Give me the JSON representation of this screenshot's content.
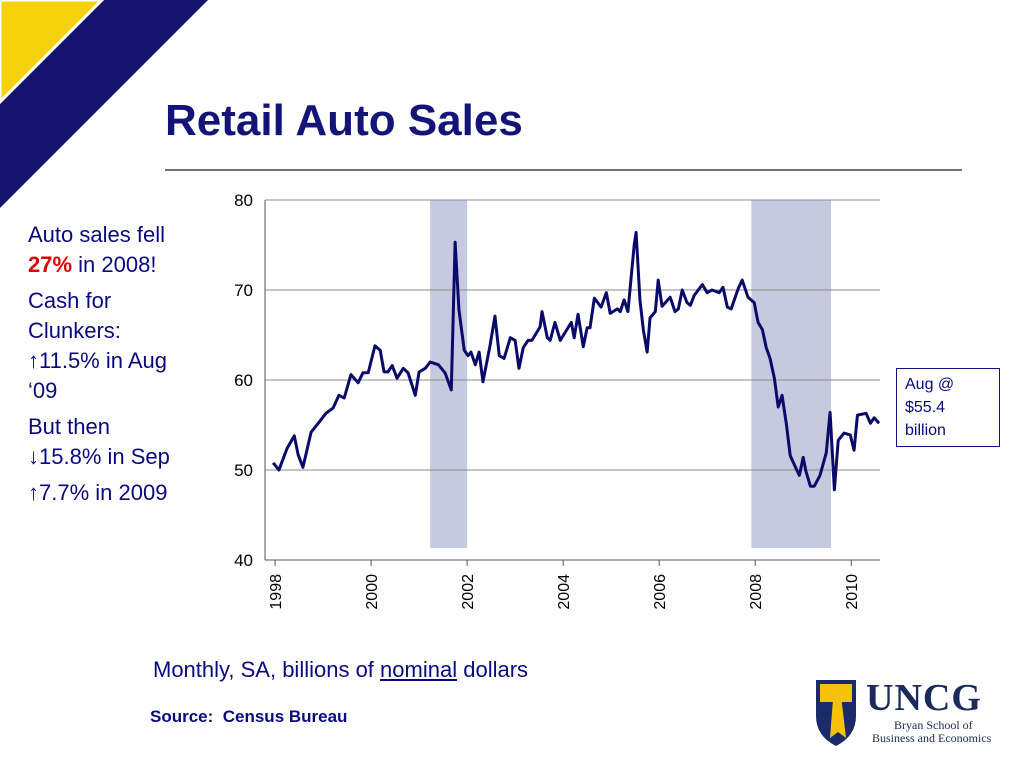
{
  "title": "Retail Auto Sales",
  "sidebar": {
    "line1_before": "Auto sales fell",
    "line1_emph": "27%",
    "line1_after": "in 2008!",
    "line2": "Cash for Clunkers: ↑11.5% in Aug ‘09",
    "line3": "But then ↓15.8% in Sep",
    "line4": "↑7.7% in 2009"
  },
  "caption": {
    "before": "Monthly, SA, billions of",
    "underlined": "nominal",
    "after": "dollars"
  },
  "source": "Source:  Census Bureau",
  "logo": {
    "name": "UNCG",
    "line1": "Bryan School of",
    "line2": "Business and Economics"
  },
  "chart_data": {
    "type": "line",
    "color": "#0a0a6a",
    "band_color": "#c7c9e0",
    "grid": true,
    "annotation": [
      "Aug @",
      "$55.4",
      "billion"
    ],
    "xlim": [
      1997.79,
      2010.6
    ],
    "xticks": [
      1998,
      2000,
      2002,
      2004,
      2006,
      2008,
      2010
    ],
    "ylim": [
      40,
      80
    ],
    "yticks": [
      40,
      50,
      60,
      70,
      80
    ],
    "recessions": [
      [
        2001.23,
        2002.0
      ],
      [
        2007.92,
        2009.58
      ]
    ],
    "x": [
      1997.96,
      1998.08,
      1998.25,
      1998.4,
      1998.48,
      1998.58,
      1998.75,
      1998.9,
      1999.06,
      1999.21,
      1999.33,
      1999.44,
      1999.58,
      1999.73,
      1999.83,
      1999.94,
      2000.08,
      2000.19,
      2000.27,
      2000.35,
      2000.44,
      2000.54,
      2000.67,
      2000.77,
      2000.92,
      2001.0,
      2001.13,
      2001.23,
      2001.4,
      2001.54,
      2001.67,
      2001.75,
      2001.83,
      2001.94,
      2002.02,
      2002.08,
      2002.17,
      2002.25,
      2002.33,
      2002.48,
      2002.58,
      2002.67,
      2002.77,
      2002.9,
      2003.0,
      2003.08,
      2003.17,
      2003.27,
      2003.35,
      2003.52,
      2003.56,
      2003.67,
      2003.73,
      2003.83,
      2003.94,
      2004.17,
      2004.23,
      2004.31,
      2004.42,
      2004.5,
      2004.56,
      2004.65,
      2004.79,
      2004.9,
      2004.98,
      2005.13,
      2005.19,
      2005.27,
      2005.35,
      2005.48,
      2005.52,
      2005.6,
      2005.67,
      2005.75,
      2005.81,
      2005.92,
      2005.98,
      2006.06,
      2006.23,
      2006.33,
      2006.4,
      2006.48,
      2006.58,
      2006.65,
      2006.73,
      2006.9,
      2007.0,
      2007.1,
      2007.25,
      2007.33,
      2007.42,
      2007.5,
      2007.65,
      2007.73,
      2007.85,
      2007.98,
      2008.06,
      2008.15,
      2008.23,
      2008.31,
      2008.4,
      2008.48,
      2008.56,
      2008.65,
      2008.73,
      2008.85,
      2008.92,
      2009.0,
      2009.06,
      2009.15,
      2009.23,
      2009.35,
      2009.48,
      2009.56,
      2009.65,
      2009.73,
      2009.85,
      2009.98,
      2010.06,
      2010.13,
      2010.31,
      2010.4,
      2010.48,
      2010.58
    ],
    "values": [
      50.8,
      50.0,
      52.4,
      53.8,
      51.7,
      50.3,
      54.2,
      55.2,
      56.3,
      56.9,
      58.3,
      58.0,
      60.6,
      59.7,
      60.8,
      60.8,
      63.8,
      63.3,
      60.9,
      60.9,
      61.6,
      60.2,
      61.3,
      60.8,
      58.3,
      60.9,
      61.3,
      62.0,
      61.7,
      60.8,
      58.9,
      75.3,
      67.8,
      63.3,
      62.7,
      63.1,
      61.7,
      63.1,
      59.8,
      63.9,
      67.1,
      62.7,
      62.4,
      64.7,
      64.4,
      61.3,
      63.6,
      64.4,
      64.4,
      65.9,
      67.6,
      64.7,
      64.4,
      66.4,
      64.4,
      66.4,
      64.7,
      67.3,
      63.7,
      65.8,
      65.8,
      69.1,
      68.1,
      69.7,
      67.4,
      67.9,
      67.6,
      68.9,
      67.6,
      75.0,
      76.4,
      68.9,
      65.6,
      63.1,
      66.9,
      67.6,
      71.1,
      68.2,
      69.2,
      67.6,
      67.9,
      70.0,
      68.6,
      68.3,
      69.4,
      70.6,
      69.7,
      70.0,
      69.7,
      70.3,
      68.1,
      67.9,
      70.2,
      71.1,
      69.2,
      68.6,
      66.4,
      65.6,
      63.6,
      62.4,
      60.2,
      57.0,
      58.3,
      55.1,
      51.6,
      50.2,
      49.4,
      51.4,
      49.8,
      48.2,
      48.2,
      49.4,
      51.9,
      56.4,
      47.8,
      53.3,
      54.1,
      53.9,
      52.2,
      56.1,
      56.3,
      55.2,
      55.8,
      55.2
    ]
  }
}
